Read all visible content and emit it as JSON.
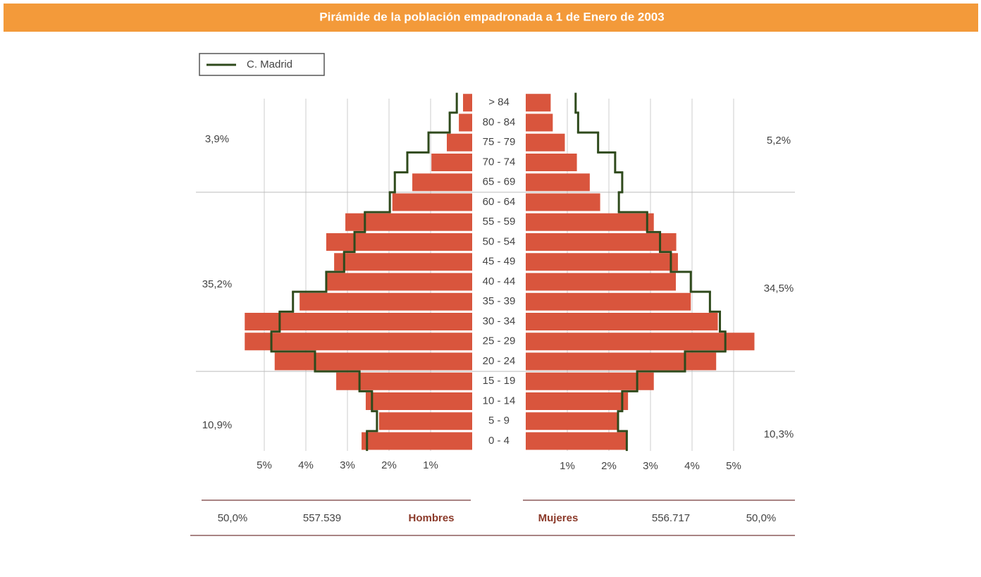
{
  "chart_data": {
    "type": "pyramid",
    "title": "Pirámide de la población empadronada a 1 de Enero de 2003",
    "categories": [
      "0 - 4",
      "5 - 9",
      "10 - 14",
      "15 - 19",
      "20 - 24",
      "25 - 29",
      "30 - 34",
      "35 - 39",
      "40 - 44",
      "45 - 49",
      "50 - 54",
      "55 - 59",
      "60 - 64",
      "65 - 69",
      "70 - 74",
      "75 - 79",
      "80 - 84",
      "> 84"
    ],
    "series": [
      {
        "name": "Hombres",
        "color": "#d9553d",
        "values": [
          2.66,
          2.24,
          2.56,
          3.27,
          4.75,
          5.47,
          5.47,
          4.15,
          3.49,
          3.32,
          3.51,
          3.05,
          1.92,
          1.44,
          0.98,
          0.61,
          0.32,
          0.22
        ]
      },
      {
        "name": "Mujeres",
        "color": "#d9553d",
        "values": [
          2.44,
          2.21,
          2.46,
          3.08,
          4.58,
          5.5,
          4.62,
          3.97,
          3.61,
          3.66,
          3.62,
          3.08,
          1.79,
          1.54,
          1.23,
          0.94,
          0.65,
          0.6
        ]
      }
    ],
    "reference": {
      "name": "C. Madrid",
      "color": "#2f4a1c",
      "hombres": [
        2.53,
        2.29,
        2.41,
        2.71,
        3.78,
        4.83,
        4.63,
        4.31,
        3.51,
        3.08,
        2.83,
        2.58,
        1.98,
        1.86,
        1.56,
        1.05,
        0.54,
        0.37
      ],
      "mujeres": [
        2.43,
        2.22,
        2.32,
        2.68,
        3.83,
        4.8,
        4.67,
        4.43,
        3.97,
        3.49,
        3.23,
        2.92,
        2.24,
        2.32,
        2.15,
        1.74,
        1.26,
        1.2
      ]
    },
    "xlim": [
      0,
      5.5
    ],
    "xticks": [
      {
        "value": 1,
        "label": "1%"
      },
      {
        "value": 2,
        "label": "2%"
      },
      {
        "value": 3,
        "label": "3%"
      },
      {
        "value": 4,
        "label": "4%"
      },
      {
        "value": 5,
        "label": "5%"
      }
    ],
    "grid": true,
    "group_labels": {
      "hombres": [
        "10,9%",
        "35,2%",
        "3,9%"
      ],
      "mujeres": [
        "10,3%",
        "34,5%",
        "5,2%"
      ]
    },
    "footer": {
      "hombres_pct": "50,0%",
      "hombres_total": "557.539",
      "mujeres_total": "556.717",
      "mujeres_pct": "50,0%"
    }
  }
}
